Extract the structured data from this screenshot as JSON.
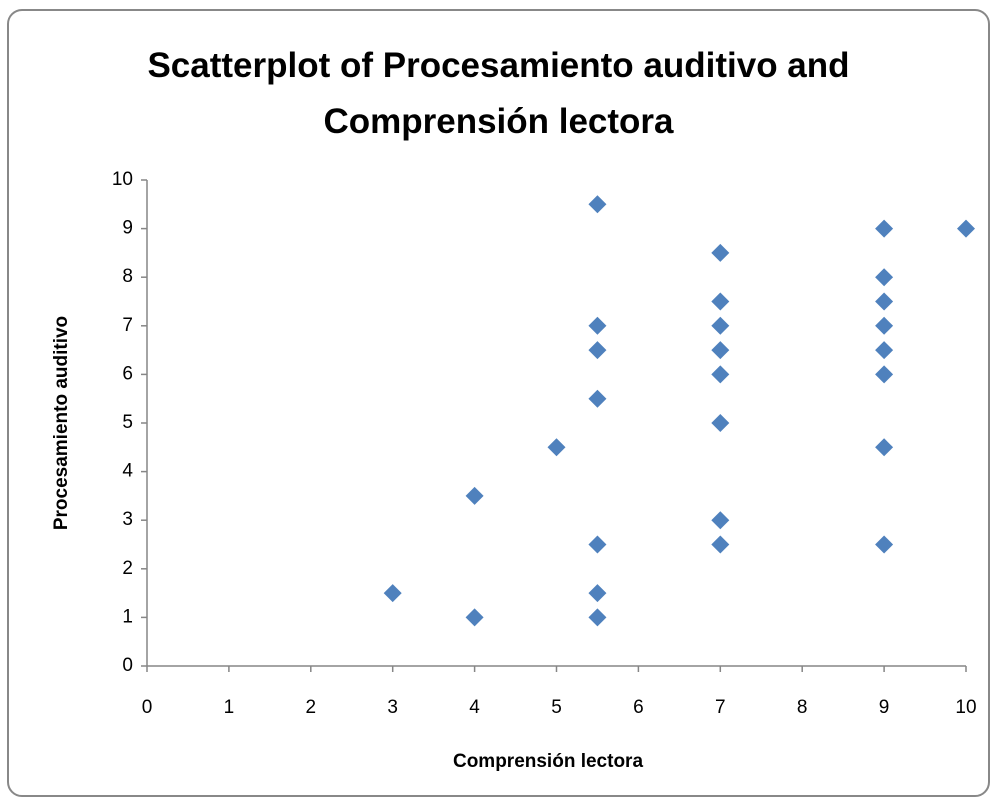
{
  "chart_data": {
    "type": "scatter",
    "title": "Scatterplot of Procesamiento auditivo and Comprensión lectora",
    "x_label": "Comprensión lectora",
    "y_label": "Procesamiento auditivo",
    "color": "#4f81bd",
    "x": [
      3,
      4,
      4,
      5,
      5.5,
      5.5,
      5.5,
      5.5,
      5.5,
      5.5,
      5.5,
      7,
      7,
      7,
      7,
      7,
      7,
      7,
      7,
      9,
      9,
      9,
      9,
      9,
      9,
      9,
      9,
      10
    ],
    "values": [
      1.5,
      3.5,
      1,
      4.5,
      9.5,
      7,
      6.5,
      5.5,
      2.5,
      1.5,
      1,
      8.5,
      7.5,
      7,
      6.5,
      6,
      5,
      3,
      2.5,
      9,
      8,
      7.5,
      7,
      6.5,
      6,
      4.5,
      2.5,
      9
    ],
    "xlim": [
      0,
      10
    ],
    "xticks": [
      0,
      1,
      2,
      3,
      4,
      5,
      6,
      7,
      8,
      9,
      10
    ],
    "ylim": [
      0,
      10
    ],
    "yticks": [
      0,
      1,
      2,
      3,
      4,
      5,
      6,
      7,
      8,
      9,
      10
    ],
    "grid": false
  }
}
